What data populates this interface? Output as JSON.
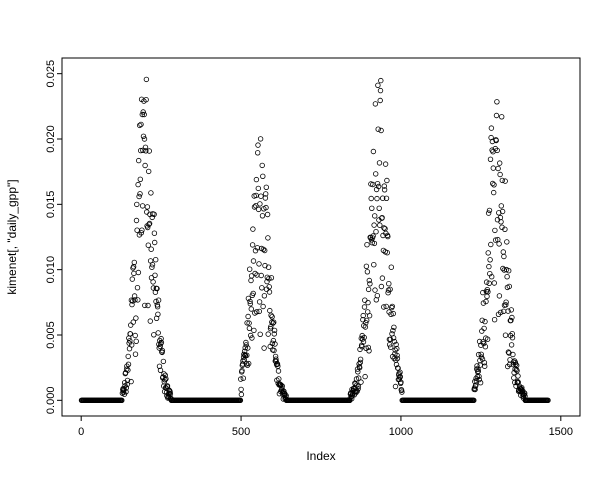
{
  "figure": {
    "background": "#ffffff",
    "foreground": "#000000"
  },
  "chart_data": {
    "type": "scatter",
    "title": "",
    "xlabel": "Index",
    "ylabel": "kimenet[, \"daily_gpp\"]",
    "marker": "open-circle",
    "marker_color": "#000000",
    "grid": false,
    "legend": null,
    "xlim": [
      -60,
      1560
    ],
    "ylim": [
      -0.0012,
      0.0262
    ],
    "xticks": [
      0,
      500,
      1000,
      1500
    ],
    "xtick_labels": [
      "0",
      "500",
      "1000",
      "1500"
    ],
    "yticks": [
      0.0,
      0.005,
      0.01,
      0.015,
      0.02,
      0.025
    ],
    "ytick_labels": [
      "0.000",
      "0.005",
      "0.010",
      "0.015",
      "0.020",
      "0.025"
    ],
    "zero_value": 0.0,
    "zero_runs": [
      [
        1,
        128
      ],
      [
        282,
        498
      ],
      [
        652,
        838
      ],
      [
        1004,
        1228
      ],
      [
        1392,
        1460
      ]
    ],
    "seasons": [
      {
        "start": 129,
        "end": 281,
        "peak": 200,
        "max": 0.0255
      },
      {
        "start": 499,
        "end": 651,
        "peak": 560,
        "max": 0.0205
      },
      {
        "start": 839,
        "end": 1003,
        "peak": 930,
        "max": 0.0255
      },
      {
        "start": 1229,
        "end": 1391,
        "peak": 1300,
        "max": 0.0245
      }
    ]
  }
}
